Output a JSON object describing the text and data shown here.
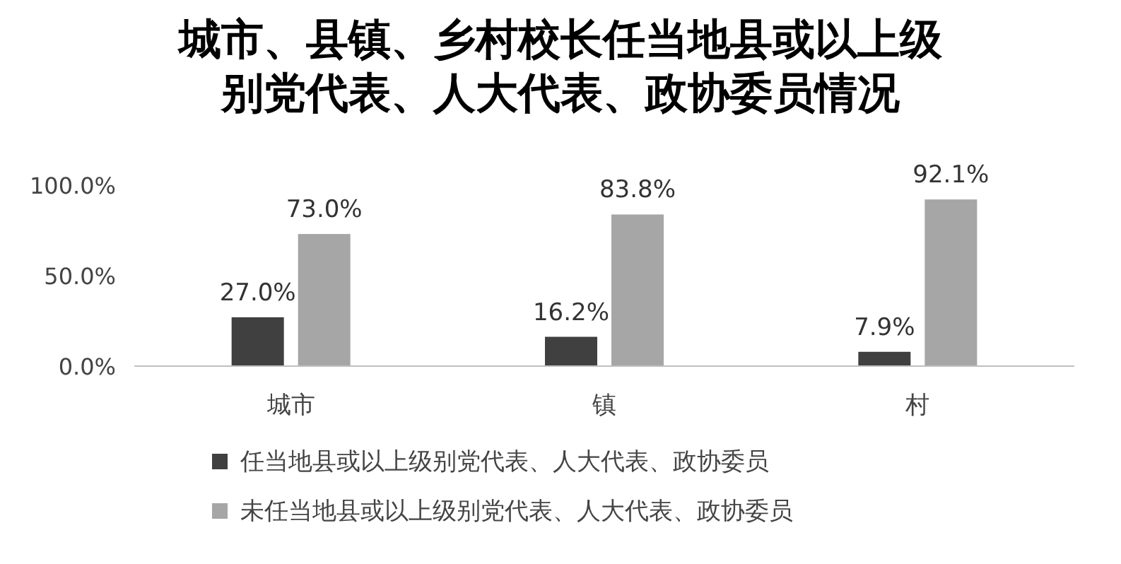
{
  "chart_data": {
    "type": "bar",
    "title": "城市、县镇、乡村校长任当地县或以上级别党代表、人大代表、政协委员情况",
    "categories": [
      "城市",
      "镇",
      "村"
    ],
    "series": [
      {
        "name": "任当地县或以上级别党代表、人大代表、政协委员",
        "color": "#404040",
        "values": [
          27.0,
          16.2,
          7.9
        ],
        "value_labels": [
          "27.0%",
          "16.2%",
          "7.9%"
        ]
      },
      {
        "name": "未任当地县或以上级别党代表、人大代表、政协委员",
        "color": "#a6a6a6",
        "values": [
          73.0,
          83.8,
          92.1
        ],
        "value_labels": [
          "73.0%",
          "83.8%",
          "92.1%"
        ]
      }
    ],
    "ylim": [
      0,
      100
    ],
    "yticks": [
      {
        "value": 0,
        "label": "0.0%"
      },
      {
        "value": 50,
        "label": "50.0%"
      },
      {
        "value": 100,
        "label": "100.0%"
      }
    ],
    "legend": "bottom"
  }
}
